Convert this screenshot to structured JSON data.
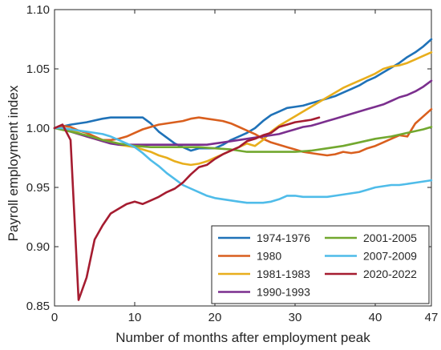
{
  "chart_data": {
    "type": "line",
    "xlabel": "Number of months after employment peak",
    "ylabel": "Payroll employment index",
    "xlim": [
      0,
      47
    ],
    "ylim": [
      0.85,
      1.1
    ],
    "x_ticks": [
      0,
      10,
      20,
      30,
      40,
      47
    ],
    "y_ticks": [
      0.85,
      0.9,
      0.95,
      1.0,
      1.05,
      1.1
    ],
    "y_tick_labels": [
      "0.85",
      "0.90",
      "0.95",
      "1.00",
      "1.05",
      "1.10"
    ],
    "grid": false,
    "legend_position": "bottom-right",
    "series": [
      {
        "name": "1974-1976",
        "color": "#1f72b8",
        "x": [
          0,
          2,
          4,
          6,
          7,
          8,
          9,
          10,
          11,
          12,
          13,
          14,
          15,
          16,
          17,
          18,
          19,
          20,
          21,
          22,
          23,
          24,
          25,
          26,
          27,
          28,
          29,
          30,
          31,
          32,
          33,
          34,
          35,
          36,
          37,
          38,
          39,
          40,
          41,
          42,
          43,
          44,
          45,
          46,
          47
        ],
        "y": [
          1.0,
          1.003,
          1.005,
          1.008,
          1.009,
          1.009,
          1.009,
          1.009,
          1.009,
          1.004,
          0.997,
          0.992,
          0.987,
          0.984,
          0.981,
          0.983,
          0.983,
          0.983,
          0.986,
          0.99,
          0.993,
          0.996,
          1.0,
          1.006,
          1.011,
          1.014,
          1.017,
          1.018,
          1.019,
          1.021,
          1.023,
          1.025,
          1.027,
          1.03,
          1.033,
          1.036,
          1.04,
          1.043,
          1.047,
          1.051,
          1.055,
          1.06,
          1.064,
          1.069,
          1.075
        ]
      },
      {
        "name": "1980",
        "color": "#d95f1e",
        "x": [
          0,
          1,
          2,
          3,
          4,
          5,
          6,
          7,
          8,
          9,
          10,
          11,
          12,
          13,
          14,
          15,
          16,
          17,
          18,
          19,
          20,
          21,
          22,
          23,
          24,
          25,
          26,
          27,
          28,
          29,
          30,
          31,
          32,
          33,
          34,
          35,
          36,
          37,
          38,
          39,
          40,
          41,
          42,
          43,
          44,
          45,
          46,
          47
        ],
        "y": [
          1.0,
          1.002,
          1.001,
          0.998,
          0.996,
          0.993,
          0.99,
          0.99,
          0.991,
          0.993,
          0.996,
          0.999,
          1.001,
          1.003,
          1.004,
          1.005,
          1.006,
          1.008,
          1.009,
          1.008,
          1.007,
          1.006,
          1.004,
          1.001,
          0.998,
          0.995,
          0.991,
          0.988,
          0.986,
          0.984,
          0.982,
          0.98,
          0.979,
          0.978,
          0.977,
          0.978,
          0.98,
          0.979,
          0.98,
          0.983,
          0.985,
          0.988,
          0.991,
          0.994,
          0.993,
          1.004,
          1.01,
          1.016
        ]
      },
      {
        "name": "1981-1983",
        "color": "#e8ae1c",
        "x": [
          0,
          1,
          2,
          3,
          4,
          5,
          6,
          7,
          8,
          9,
          10,
          11,
          12,
          13,
          14,
          15,
          16,
          17,
          18,
          19,
          20,
          21,
          22,
          23,
          24,
          25,
          26,
          27,
          28,
          29,
          30,
          31,
          32,
          33,
          34,
          35,
          36,
          37,
          38,
          39,
          40,
          41,
          42,
          43,
          44,
          45,
          46,
          47
        ],
        "y": [
          1.0,
          1.0,
          0.999,
          0.996,
          0.993,
          0.991,
          0.989,
          0.988,
          0.986,
          0.985,
          0.984,
          0.982,
          0.98,
          0.977,
          0.975,
          0.972,
          0.97,
          0.969,
          0.97,
          0.972,
          0.975,
          0.978,
          0.981,
          0.984,
          0.987,
          0.985,
          0.99,
          0.997,
          1.002,
          1.006,
          1.01,
          1.014,
          1.018,
          1.022,
          1.026,
          1.03,
          1.034,
          1.037,
          1.04,
          1.043,
          1.046,
          1.05,
          1.052,
          1.053,
          1.055,
          1.058,
          1.061,
          1.064
        ]
      },
      {
        "name": "1990-1993",
        "color": "#7b2f8e",
        "x": [
          0,
          1,
          2,
          3,
          4,
          5,
          6,
          7,
          8,
          9,
          10,
          11,
          12,
          13,
          14,
          15,
          16,
          17,
          18,
          19,
          20,
          21,
          22,
          23,
          24,
          25,
          26,
          27,
          28,
          29,
          30,
          31,
          32,
          33,
          34,
          35,
          36,
          37,
          38,
          39,
          40,
          41,
          42,
          43,
          44,
          45,
          46,
          47
        ],
        "y": [
          1.0,
          0.999,
          0.997,
          0.995,
          0.993,
          0.991,
          0.989,
          0.987,
          0.986,
          0.986,
          0.986,
          0.986,
          0.986,
          0.986,
          0.986,
          0.986,
          0.986,
          0.986,
          0.986,
          0.986,
          0.987,
          0.988,
          0.989,
          0.99,
          0.991,
          0.992,
          0.993,
          0.994,
          0.995,
          0.997,
          0.999,
          1.001,
          1.002,
          1.004,
          1.006,
          1.008,
          1.01,
          1.012,
          1.014,
          1.016,
          1.018,
          1.02,
          1.023,
          1.026,
          1.028,
          1.031,
          1.035,
          1.04
        ]
      },
      {
        "name": "2001-2005",
        "color": "#72a82f",
        "x": [
          0,
          2,
          4,
          6,
          8,
          10,
          12,
          14,
          16,
          18,
          20,
          22,
          24,
          26,
          28,
          30,
          32,
          34,
          36,
          38,
          40,
          42,
          44,
          46,
          47
        ],
        "y": [
          1.0,
          0.997,
          0.994,
          0.99,
          0.987,
          0.985,
          0.984,
          0.984,
          0.984,
          0.984,
          0.983,
          0.982,
          0.98,
          0.98,
          0.98,
          0.98,
          0.981,
          0.983,
          0.985,
          0.988,
          0.991,
          0.993,
          0.996,
          0.999,
          1.001
        ]
      },
      {
        "name": "2007-2009",
        "color": "#4fbce9",
        "x": [
          0,
          1,
          2,
          3,
          4,
          5,
          6,
          7,
          8,
          9,
          10,
          11,
          12,
          13,
          14,
          15,
          16,
          17,
          18,
          19,
          20,
          21,
          22,
          23,
          24,
          25,
          26,
          27,
          28,
          29,
          30,
          31,
          32,
          33,
          34,
          35,
          36,
          37,
          38,
          39,
          40,
          41,
          42,
          43,
          44,
          45,
          46,
          47
        ],
        "y": [
          1.0,
          1.0,
          0.999,
          0.998,
          0.997,
          0.996,
          0.995,
          0.993,
          0.99,
          0.987,
          0.984,
          0.979,
          0.973,
          0.968,
          0.962,
          0.957,
          0.952,
          0.949,
          0.946,
          0.943,
          0.941,
          0.94,
          0.939,
          0.938,
          0.937,
          0.937,
          0.937,
          0.938,
          0.94,
          0.943,
          0.943,
          0.942,
          0.942,
          0.942,
          0.942,
          0.943,
          0.944,
          0.945,
          0.946,
          0.948,
          0.95,
          0.951,
          0.952,
          0.952,
          0.953,
          0.954,
          0.955,
          0.956
        ]
      },
      {
        "name": "2020-2022",
        "color": "#a51c30",
        "x": [
          0,
          1,
          2,
          3,
          4,
          5,
          6,
          7,
          8,
          9,
          10,
          11,
          12,
          13,
          14,
          15,
          16,
          17,
          18,
          19,
          20,
          21,
          22,
          23,
          24,
          25,
          26,
          27,
          28,
          29,
          30,
          31,
          32,
          33
        ],
        "y": [
          1.0,
          1.003,
          0.99,
          0.855,
          0.874,
          0.906,
          0.918,
          0.928,
          0.932,
          0.936,
          0.938,
          0.936,
          0.939,
          0.942,
          0.946,
          0.949,
          0.954,
          0.961,
          0.967,
          0.969,
          0.974,
          0.978,
          0.981,
          0.984,
          0.989,
          0.991,
          0.994,
          0.996,
          1.001,
          1.003,
          1.005,
          1.006,
          1.007,
          1.009
        ]
      }
    ]
  }
}
